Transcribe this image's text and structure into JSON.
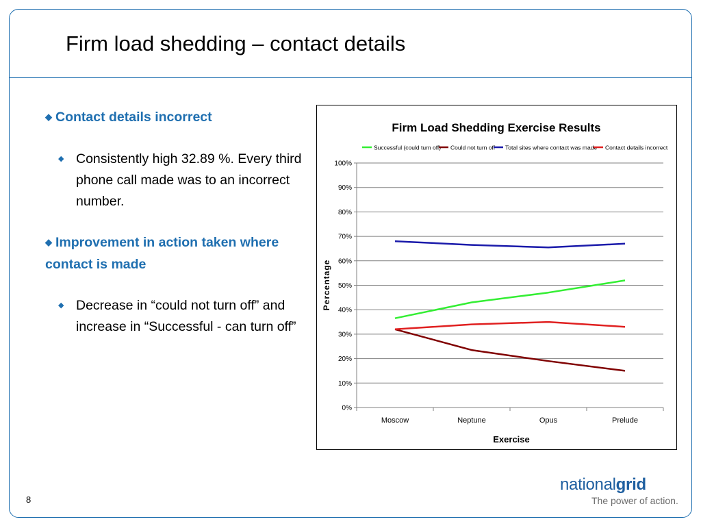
{
  "slide": {
    "title": "Firm load shedding – contact details",
    "page_number": "8"
  },
  "bullets": {
    "heading1": "Contact details incorrect",
    "sub1": "Consistently high 32.89 %. Every third phone call made was to an incorrect number.",
    "heading2": "Improvement in action taken where contact is made",
    "sub2": "Decrease in “could not turn off” and increase in “Successful - can turn off”"
  },
  "logo": {
    "word_plain": "national",
    "word_bold": "grid",
    "tagline": "The power of action."
  },
  "colors": {
    "accent": "#1f6fb0",
    "series_successful": "#33ee33",
    "series_could_not": "#800000",
    "series_total_contact": "#1a1aaa",
    "series_incorrect": "#e02020"
  },
  "chart_data": {
    "type": "line",
    "title": "Firm Load Shedding Exercise Results",
    "xlabel": "Exercise",
    "ylabel": "Percentage",
    "categories": [
      "Moscow",
      "Neptune",
      "Opus",
      "Prelude"
    ],
    "ylim": [
      0,
      100
    ],
    "yticks": [
      "0%",
      "10%",
      "20%",
      "30%",
      "40%",
      "50%",
      "60%",
      "70%",
      "80%",
      "90%",
      "100%"
    ],
    "grid": true,
    "legend_position": "top",
    "series": [
      {
        "name": "Successful (could turn off)",
        "color": "#33ee33",
        "values": [
          36.5,
          43,
          47,
          52
        ]
      },
      {
        "name": "Could not turn off",
        "color": "#800000",
        "values": [
          32,
          23.5,
          19,
          15
        ]
      },
      {
        "name": "Total sites where contact was made",
        "color": "#1a1aaa",
        "values": [
          68,
          66.5,
          65.5,
          67
        ]
      },
      {
        "name": "Contact details incorrect",
        "color": "#e02020",
        "values": [
          32,
          34,
          35,
          33
        ]
      }
    ]
  }
}
